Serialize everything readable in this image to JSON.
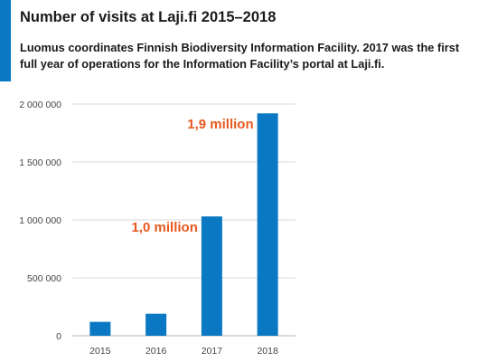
{
  "colors": {
    "accent": "#0a78c2",
    "bar": "#0a78c2",
    "label": "#e8581e",
    "grid": "#d9d9d9"
  },
  "header": {
    "title": "Number of visits at Laji.fi 2015–2018",
    "subtitle": "Luomus coordinates Finnish Biodiversity Information Facility. 2017 was the first full year of operations for the Information Facility’s portal at Laji.fi."
  },
  "chart_data": {
    "type": "bar",
    "categories": [
      "2015",
      "2016",
      "2017",
      "2018"
    ],
    "values": [
      120000,
      190000,
      1030000,
      1920000
    ],
    "ylim": [
      0,
      2000000
    ],
    "yticks": [
      0,
      500000,
      1000000,
      1500000,
      2000000
    ],
    "ytick_labels": [
      "0",
      "500 000",
      "1 000 000",
      "1 500 000",
      "2 000 000"
    ],
    "annotations": [
      {
        "category": "2017",
        "text": "1,0 million"
      },
      {
        "category": "2018",
        "text": "1,9 million"
      }
    ],
    "grid": true,
    "legend": "none"
  }
}
